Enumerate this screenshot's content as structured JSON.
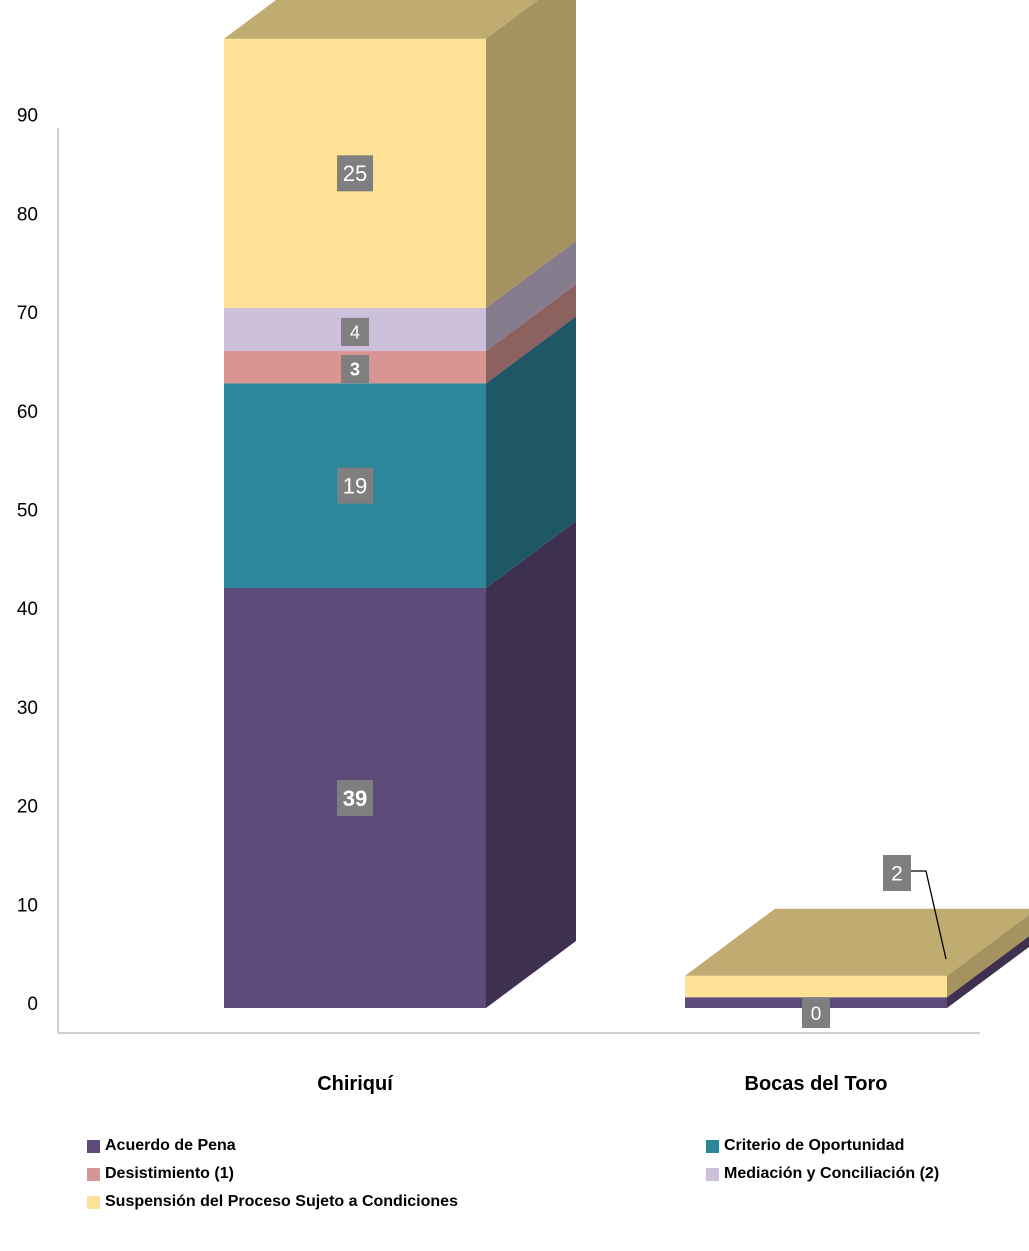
{
  "chart_data": {
    "type": "bar",
    "stacked": true,
    "three_d": true,
    "categories": [
      "Chiriquí",
      "Bocas del Toro"
    ],
    "series": [
      {
        "name": "Acuerdo de Pena",
        "values": [
          39,
          1
        ],
        "labels": [
          "39",
          null
        ],
        "color": "#5f4b7a",
        "label_bold": true
      },
      {
        "name": "Criterio de Oportunidad",
        "values": [
          19,
          0
        ],
        "labels": [
          "19",
          null
        ],
        "color": "#2e869b",
        "label_bold": false
      },
      {
        "name": "Desistimiento (1)",
        "values": [
          3,
          0
        ],
        "labels": [
          "3",
          null
        ],
        "color": "#d99593",
        "label_bold": true
      },
      {
        "name": "Mediación y Conciliación (2)",
        "values": [
          4,
          0
        ],
        "labels": [
          "4",
          "0"
        ],
        "color": "#ccc0da",
        "label_bold": false
      },
      {
        "name": "Suspensión del Proceso Sujeto a Condiciones",
        "values": [
          25,
          2
        ],
        "labels": [
          "25",
          "2"
        ],
        "color": "#fde295",
        "label_bold": false
      }
    ],
    "title": "",
    "xlabel": "",
    "ylabel": "",
    "ylim": [
      0,
      90
    ],
    "yticks": [
      0,
      10,
      20,
      30,
      40,
      50,
      60,
      70,
      80,
      90
    ],
    "grid": false,
    "legend_position": "bottom"
  }
}
